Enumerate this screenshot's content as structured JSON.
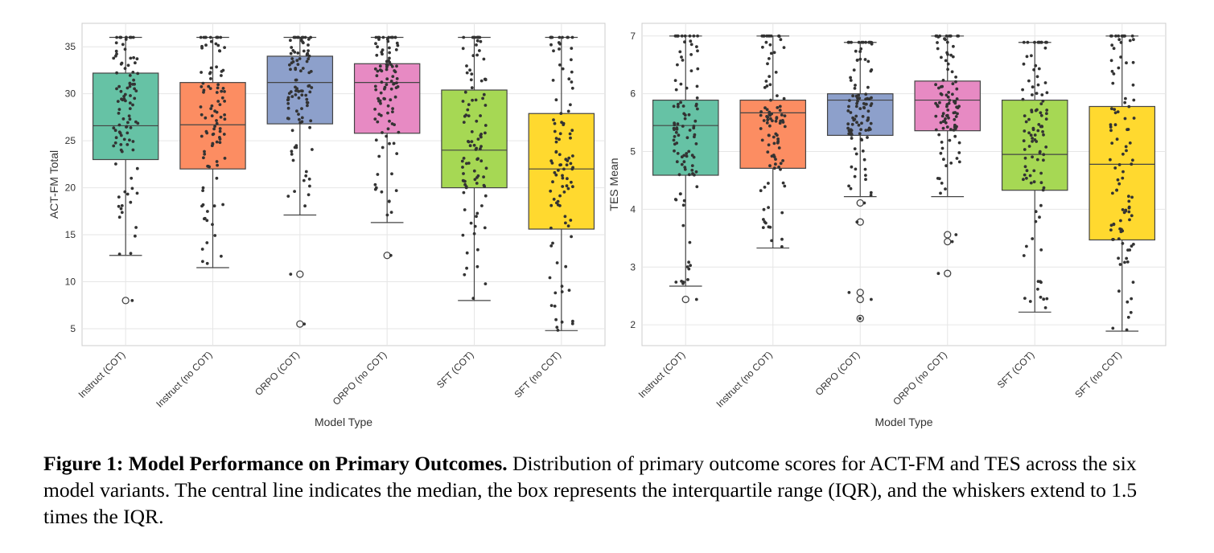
{
  "colors": {
    "boxes": [
      "#66c2a5",
      "#fc8d62",
      "#8da0cb",
      "#e78ac3",
      "#a6d854",
      "#ffd92f"
    ],
    "points": "#333333",
    "edge": "#444444",
    "grid": "#e6e6e6",
    "frame": "#cccccc"
  },
  "chart_data": [
    {
      "type": "box",
      "xlabel": "Model Type",
      "ylabel": "ACT-FM Total",
      "ylim": [
        3.2,
        37.5
      ],
      "yticks": [
        5,
        10,
        15,
        20,
        25,
        30,
        35
      ],
      "grid": true,
      "categories": [
        "Instruct (COT)",
        "Instruct (no COT)",
        "ORPO (COT)",
        "ORPO (no COT)",
        "SFT (COT)",
        "SFT (no COT)"
      ],
      "boxes": [
        {
          "q1": 23.0,
          "median": 26.6,
          "q3": 32.2,
          "whisker_low": 12.8,
          "whisker_high": 36.0,
          "outliers": [
            8.0
          ]
        },
        {
          "q1": 22.0,
          "median": 26.7,
          "q3": 31.2,
          "whisker_low": 11.5,
          "whisker_high": 36.0,
          "outliers": []
        },
        {
          "q1": 26.8,
          "median": 31.2,
          "q3": 34.0,
          "whisker_low": 17.1,
          "whisker_high": 36.0,
          "outliers": [
            10.8,
            5.5
          ]
        },
        {
          "q1": 25.8,
          "median": 31.2,
          "q3": 33.2,
          "whisker_low": 16.3,
          "whisker_high": 36.0,
          "outliers": [
            12.8
          ]
        },
        {
          "q1": 20.0,
          "median": 24.0,
          "q3": 30.4,
          "whisker_low": 8.0,
          "whisker_high": 36.0,
          "outliers": []
        },
        {
          "q1": 15.6,
          "median": 22.0,
          "q3": 27.9,
          "whisker_low": 4.8,
          "whisker_high": 36.0,
          "outliers": []
        }
      ]
    },
    {
      "type": "box",
      "xlabel": "Model Type",
      "ylabel": "TES Mean",
      "ylim": [
        1.64,
        7.22
      ],
      "yticks": [
        2,
        3,
        4,
        5,
        6,
        7
      ],
      "grid": true,
      "categories": [
        "Instruct (COT)",
        "Instruct (no COT)",
        "ORPO (COT)",
        "ORPO (no COT)",
        "SFT (COT)",
        "SFT (no COT)"
      ],
      "boxes": [
        {
          "q1": 4.59,
          "median": 5.45,
          "q3": 5.89,
          "whisker_low": 2.67,
          "whisker_high": 7.0,
          "outliers": [
            2.44
          ]
        },
        {
          "q1": 4.71,
          "median": 5.67,
          "q3": 5.89,
          "whisker_low": 3.33,
          "whisker_high": 7.0,
          "outliers": []
        },
        {
          "q1": 5.28,
          "median": 5.89,
          "q3": 6.0,
          "whisker_low": 4.22,
          "whisker_high": 6.89,
          "outliers": [
            4.11,
            3.78,
            2.56,
            2.44,
            2.11
          ]
        },
        {
          "q1": 5.36,
          "median": 5.89,
          "q3": 6.22,
          "whisker_low": 4.22,
          "whisker_high": 7.0,
          "outliers": [
            3.56,
            3.44,
            2.89
          ]
        },
        {
          "q1": 4.33,
          "median": 4.95,
          "q3": 5.89,
          "whisker_low": 2.22,
          "whisker_high": 6.89,
          "outliers": []
        },
        {
          "q1": 3.47,
          "median": 4.78,
          "q3": 5.78,
          "whisker_low": 1.89,
          "whisker_high": 7.0,
          "outliers": []
        }
      ]
    }
  ],
  "caption": {
    "bold": "Figure 1: Model Performance on Primary Outcomes.",
    "text": " Distribution of primary outcome scores for ACT-FM and TES across the six model variants. The central line indicates the median, the box represents the interquartile range (IQR), and the whiskers extend to 1.5 times the IQR."
  }
}
